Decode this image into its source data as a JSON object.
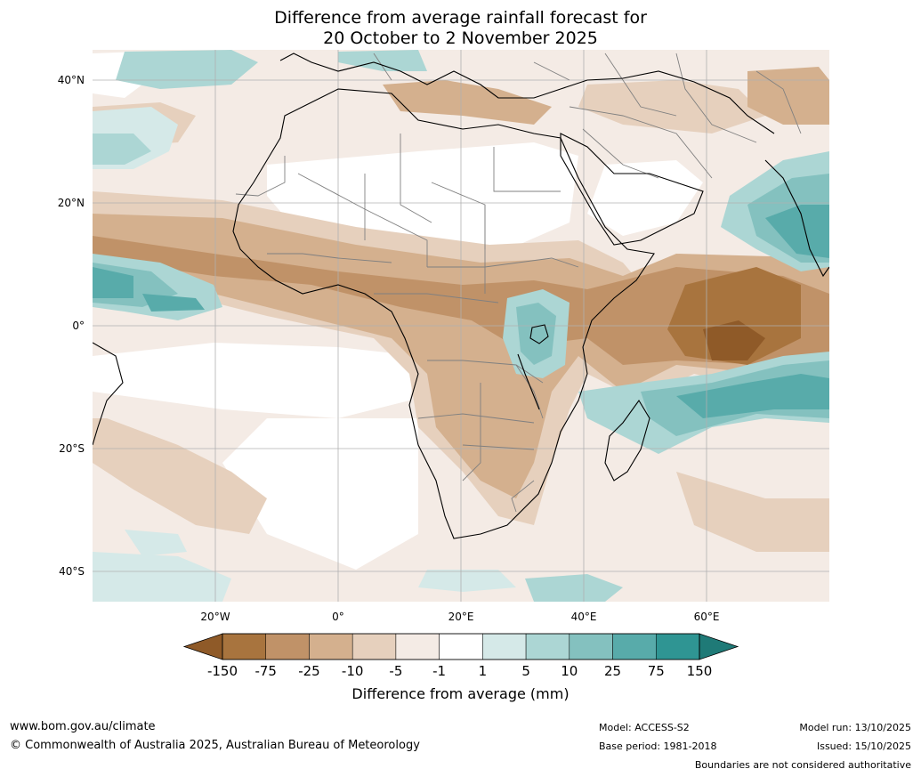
{
  "title": {
    "line1": "Difference from average rainfall forecast for",
    "line2": "20 October to 2 November 2025"
  },
  "axes": {
    "lat_labels": [
      "40°N",
      "20°N",
      "0°",
      "20°S",
      "40°S"
    ],
    "lon_labels": [
      "20°W",
      "0°",
      "20°E",
      "40°E",
      "60°E"
    ]
  },
  "legend": {
    "labels": [
      "-150",
      "-75",
      "-25",
      "-10",
      "-5",
      "-1",
      "1",
      "5",
      "10",
      "25",
      "75",
      "150"
    ],
    "colors": [
      "#8f5a28",
      "#a8743e",
      "#c09268",
      "#d4b08e",
      "#e6d0bd",
      "#f4ebe5",
      "#ffffff",
      "#d5e9e8",
      "#acd6d4",
      "#84c1bf",
      "#58abaa",
      "#2f9593",
      "#1f7a77"
    ],
    "title": "Difference from average (mm)"
  },
  "footer": {
    "website": "www.bom.gov.au/climate",
    "copyright": "© Commonwealth of Australia 2025, Australian Bureau of Meteorology",
    "model": "Model: ACCESS-S2",
    "base_period": "Base period: 1981-2018",
    "model_run": "Model run: 13/10/2025",
    "issued": "Issued: 15/10/2025",
    "disclaimer": "Boundaries are not considered authoritative"
  }
}
